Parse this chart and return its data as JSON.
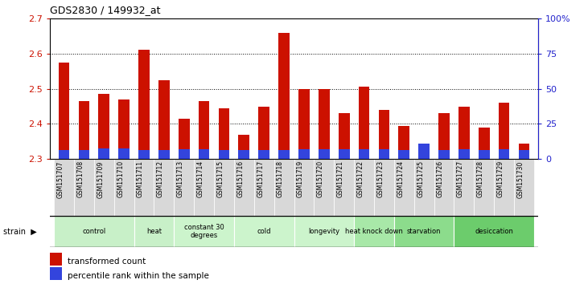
{
  "title": "GDS2830 / 149932_at",
  "samples": [
    "GSM151707",
    "GSM151708",
    "GSM151709",
    "GSM151710",
    "GSM151711",
    "GSM151712",
    "GSM151713",
    "GSM151714",
    "GSM151715",
    "GSM151716",
    "GSM151717",
    "GSM151718",
    "GSM151719",
    "GSM151720",
    "GSM151721",
    "GSM151722",
    "GSM151723",
    "GSM151724",
    "GSM151725",
    "GSM151726",
    "GSM151727",
    "GSM151728",
    "GSM151729",
    "GSM151730"
  ],
  "red_values": [
    2.575,
    2.465,
    2.485,
    2.47,
    2.61,
    2.525,
    2.415,
    2.465,
    2.445,
    2.37,
    2.45,
    2.66,
    2.5,
    2.5,
    2.43,
    2.505,
    2.44,
    2.395,
    2.3,
    2.43,
    2.45,
    2.39,
    2.46,
    2.345
  ],
  "blue_top": [
    2.325,
    2.325,
    2.33,
    2.33,
    2.325,
    2.325,
    2.328,
    2.328,
    2.325,
    2.325,
    2.325,
    2.325,
    2.328,
    2.328,
    2.328,
    2.328,
    2.328,
    2.325,
    2.345,
    2.325,
    2.328,
    2.325,
    2.328,
    2.325
  ],
  "bar_bottom": 2.3,
  "ylim_left": [
    2.3,
    2.7
  ],
  "ylim_right": [
    0,
    100
  ],
  "yticks_left": [
    2.3,
    2.4,
    2.5,
    2.6,
    2.7
  ],
  "yticks_right": [
    0,
    25,
    50,
    75,
    100
  ],
  "ytick_labels_right": [
    "0",
    "25",
    "50",
    "75",
    "100%"
  ],
  "groups": [
    {
      "label": "control",
      "start": 0,
      "end": 3
    },
    {
      "label": "heat",
      "start": 4,
      "end": 5
    },
    {
      "label": "constant 30\ndegrees",
      "start": 6,
      "end": 8
    },
    {
      "label": "cold",
      "start": 9,
      "end": 11
    },
    {
      "label": "longevity",
      "start": 12,
      "end": 14
    },
    {
      "label": "heat knock down",
      "start": 15,
      "end": 16
    },
    {
      "label": "starvation",
      "start": 17,
      "end": 19
    },
    {
      "label": "desiccation",
      "start": 20,
      "end": 23
    }
  ],
  "group_colors": [
    "#c8f0c8",
    "#c8f0c8",
    "#ccf4cc",
    "#ccf4cc",
    "#ccf4cc",
    "#a8e8a8",
    "#8cdc8c",
    "#6ccc6c"
  ],
  "red_color": "#CC1100",
  "blue_color": "#3344DD",
  "left_tick_color": "#CC1100",
  "right_tick_color": "#2222CC",
  "xtick_bg": "#d8d8d8",
  "bar_width": 0.55,
  "figsize": [
    7.31,
    3.54
  ],
  "dpi": 100
}
